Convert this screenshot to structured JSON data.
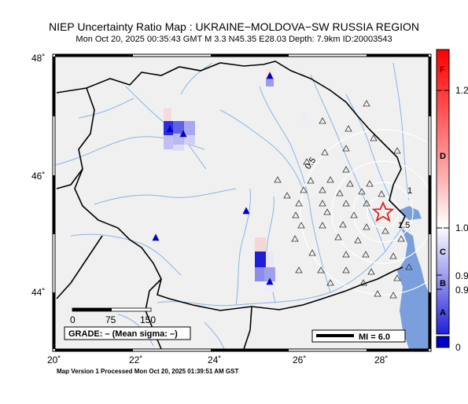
{
  "header": {
    "title": "NIEP Uncertainty Ratio Map : UKRAINE−MOLDOVA−SW RUSSIA REGION",
    "subtitle": "Mon Oct 20, 2025 00:35:43 GMT    M 3.3    N45.35 E28.03    Depth: 7.9km    ID:20003543"
  },
  "footer": {
    "text": "Map Version 1 Processed Mon Oct 20, 2025 01:39:51 AM GST"
  },
  "map": {
    "lon_ticks": [
      "20˚",
      "22˚",
      "24˚",
      "26˚",
      "28˚"
    ],
    "lat_ticks": [
      "48˚",
      "46˚",
      "44˚"
    ],
    "contour_labels": [
      "0.5",
      "1",
      "1.5"
    ],
    "scalebar": {
      "labels": [
        "0",
        "75",
        "150"
      ]
    },
    "grade_label": "GRADE: – (Mean sigma: –)",
    "mi_label": "MI = 6.0",
    "colors": {
      "land": "#f0f0f0",
      "sea": "#7a9fdc",
      "river": "#8ab4e6",
      "border": "#000000",
      "epicenter": "#e02020"
    }
  },
  "colorbar": {
    "letters": [
      "F",
      "D",
      "C",
      "B",
      "A"
    ],
    "values": [
      "1.2",
      "1.0",
      "0.9",
      "0.9",
      "0"
    ],
    "colors": {
      "top": "#ff0000",
      "mid": "#ffffff",
      "bottom": "#0000cc"
    }
  }
}
